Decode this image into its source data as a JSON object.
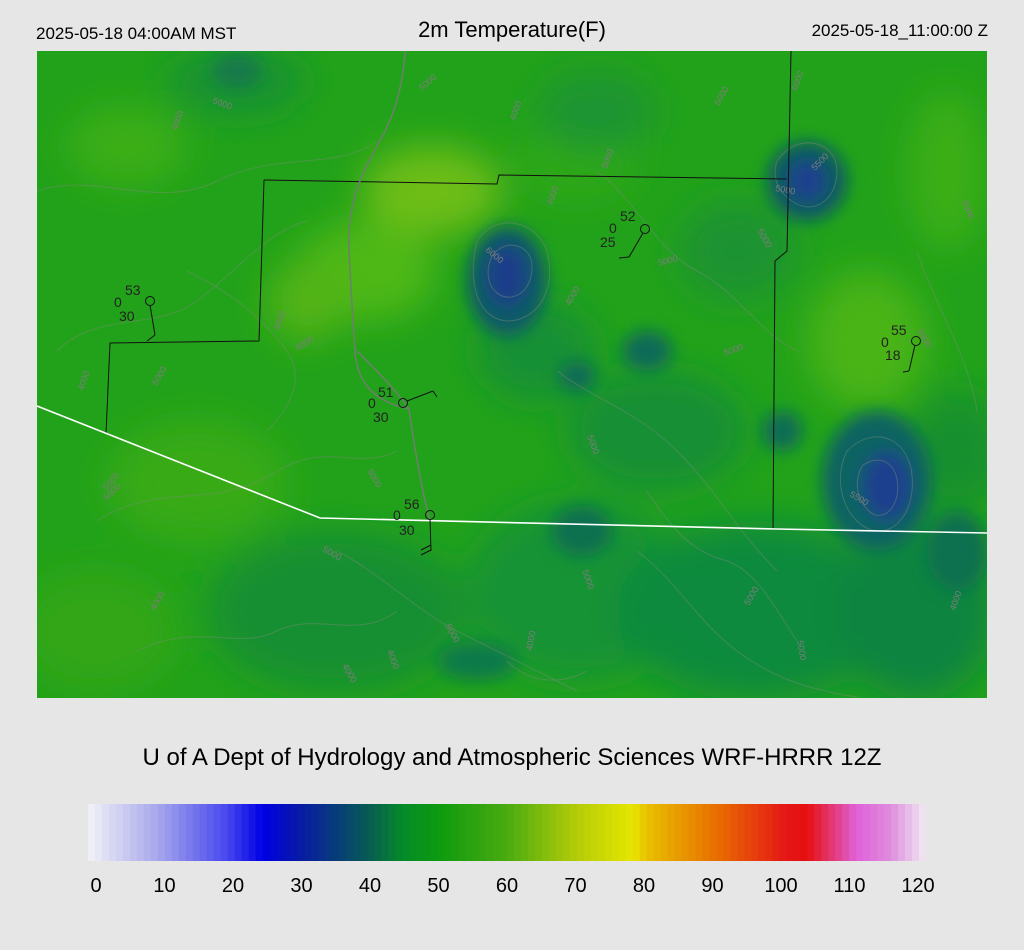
{
  "header": {
    "local_time": "2025-05-18 04:00AM MST",
    "title": "2m Temperature(F)",
    "utc_time": "2025-05-18_11:00:00 Z"
  },
  "credit": "U of A Dept of Hydrology and Atmospheric Sciences WRF-HRRR 12Z",
  "colorbar": {
    "ticks": [
      "0",
      "10",
      "20",
      "30",
      "40",
      "50",
      "60",
      "70",
      "80",
      "90",
      "100",
      "110",
      "120"
    ],
    "range": [
      0,
      120
    ],
    "stops": [
      {
        "v": 0,
        "c": "#f2f2f6"
      },
      {
        "v": 10,
        "c": "#a6a6ec"
      },
      {
        "v": 20,
        "c": "#4646ee"
      },
      {
        "v": 25,
        "c": "#0000e6"
      },
      {
        "v": 30,
        "c": "#0818a8"
      },
      {
        "v": 40,
        "c": "#075a55"
      },
      {
        "v": 45,
        "c": "#058a2a"
      },
      {
        "v": 50,
        "c": "#0c9a10"
      },
      {
        "v": 60,
        "c": "#4aab10"
      },
      {
        "v": 70,
        "c": "#b4cc08"
      },
      {
        "v": 78,
        "c": "#e6e600"
      },
      {
        "v": 80,
        "c": "#e8c000"
      },
      {
        "v": 90,
        "c": "#e86e00"
      },
      {
        "v": 100,
        "c": "#e51616"
      },
      {
        "v": 103,
        "c": "#e51010"
      },
      {
        "v": 110,
        "c": "#e060d8"
      },
      {
        "v": 115,
        "c": "#de8ede"
      },
      {
        "v": 120,
        "c": "#f2eaf2"
      }
    ]
  },
  "map": {
    "base_color": "#22a21a",
    "contour_labels": [
      "5000",
      "4000",
      "5000",
      "4000",
      "5000",
      "6000",
      "4000",
      "5000",
      "5000",
      "6000",
      "5500",
      "5000",
      "5000",
      "4000",
      "4000",
      "5000",
      "4000",
      "5000",
      "5000",
      "5000",
      "4000",
      "5000",
      "5000",
      "4000",
      "5000",
      "5000",
      "4000",
      "5000",
      "5500",
      "5000",
      "4000",
      "5000",
      "4000",
      "4000",
      "4000",
      "5000"
    ],
    "stations": [
      {
        "name": "station-a",
        "temp": "53",
        "cover": "0",
        "dewpoint": "30"
      },
      {
        "name": "station-b",
        "temp": "52",
        "cover": "0",
        "dewpoint": "25"
      },
      {
        "name": "station-c",
        "temp": "55",
        "cover": "0",
        "dewpoint": "18"
      },
      {
        "name": "station-d",
        "temp": "51",
        "cover": "0",
        "dewpoint": "30"
      },
      {
        "name": "station-e",
        "temp": "56",
        "cover": "0",
        "dewpoint": "30"
      }
    ]
  }
}
